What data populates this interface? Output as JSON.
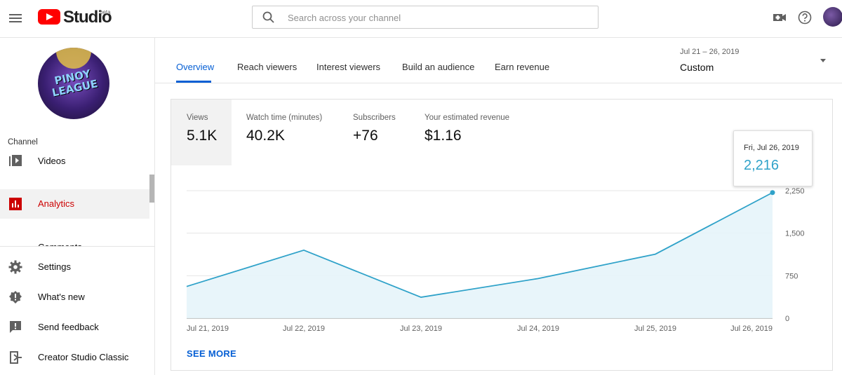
{
  "app": {
    "logo_text": "Studio",
    "beta_label": "beta"
  },
  "search": {
    "placeholder": "Search across your channel"
  },
  "sidebar": {
    "section_label": "Channel",
    "items": [
      {
        "label": "Videos",
        "icon": "video-library-icon"
      },
      {
        "label": "Analytics",
        "icon": "analytics-icon",
        "active": true
      },
      {
        "label": "Comments",
        "icon": "comments-icon"
      }
    ],
    "bottom_items": [
      {
        "label": "Settings",
        "icon": "gear-icon"
      },
      {
        "label": "What's new",
        "icon": "whats-new-icon"
      },
      {
        "label": "Send feedback",
        "icon": "feedback-icon"
      },
      {
        "label": "Creator Studio Classic",
        "icon": "classic-studio-icon"
      }
    ]
  },
  "tabs": [
    "Overview",
    "Reach viewers",
    "Interest viewers",
    "Build an audience",
    "Earn revenue"
  ],
  "date_range": {
    "range": "Jul 21 – 26, 2019",
    "kind": "Custom"
  },
  "metrics": [
    {
      "label": "Views",
      "value": "5.1K"
    },
    {
      "label": "Watch time (minutes)",
      "value": "40.2K"
    },
    {
      "label": "Subscribers",
      "value": "+76"
    },
    {
      "label": "Your estimated revenue",
      "value": "$1.16"
    }
  ],
  "see_more": "SEE MORE",
  "tooltip": {
    "date": "Fri, Jul 26, 2019",
    "value": "2,216"
  },
  "colors": {
    "accent": "#065fd4",
    "line": "#2fa2c9",
    "area": "#e6f4fa",
    "active_nav": "#cc0000"
  },
  "chart_data": {
    "type": "area",
    "x": [
      "Jul 21, 2019",
      "Jul 22, 2019",
      "Jul 23, 2019",
      "Jul 24, 2019",
      "Jul 25, 2019",
      "Jul 26, 2019"
    ],
    "values": [
      560,
      1200,
      370,
      700,
      1130,
      2216
    ],
    "y_ticks": [
      "0",
      "750",
      "1,500",
      "2,250"
    ],
    "ylim": [
      0,
      2250
    ],
    "grid": true
  }
}
